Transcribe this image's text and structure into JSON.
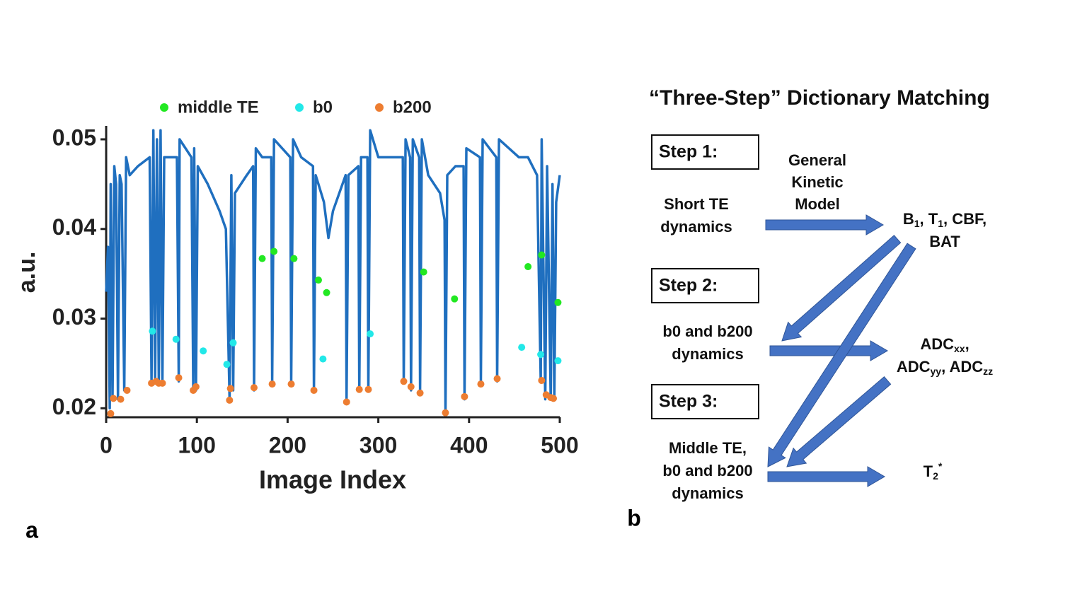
{
  "chart_data": {
    "type": "line",
    "xlabel": "Image Index",
    "ylabel": "a.u.",
    "xlim": [
      0,
      500
    ],
    "xticks": [
      0,
      100,
      200,
      300,
      400,
      500
    ],
    "ylim": [
      0.019,
      0.0515
    ],
    "yticks": [
      0.02,
      0.03,
      0.04,
      0.05
    ],
    "line": {
      "color": "#1f6fbf",
      "x": [
        0,
        2,
        4,
        5,
        7,
        9,
        11,
        13,
        15,
        17,
        20,
        22,
        26,
        35,
        48,
        50,
        52,
        54,
        56,
        58,
        60,
        62,
        64,
        78,
        80,
        81,
        94,
        96,
        97,
        99,
        101,
        112,
        125,
        132,
        136,
        138,
        140,
        142,
        155,
        162,
        163,
        165,
        172,
        182,
        183,
        185,
        203,
        204,
        206,
        215,
        228,
        229,
        231,
        240,
        245,
        250,
        264,
        265,
        267,
        278,
        279,
        281,
        288,
        289,
        291,
        300,
        320,
        327,
        328,
        330,
        335,
        336,
        338,
        345,
        346,
        348,
        355,
        368,
        373,
        374,
        376,
        385,
        394,
        395,
        397,
        412,
        413,
        415,
        430,
        431,
        433,
        455,
        465,
        475,
        479,
        480,
        484,
        486,
        490,
        492,
        494,
        496,
        500
      ],
      "values": [
        0.033,
        0.038,
        0.02,
        0.045,
        0.021,
        0.047,
        0.045,
        0.021,
        0.046,
        0.045,
        0.022,
        0.048,
        0.046,
        0.047,
        0.048,
        0.023,
        0.051,
        0.023,
        0.05,
        0.023,
        0.051,
        0.023,
        0.048,
        0.048,
        0.023,
        0.05,
        0.048,
        0.022,
        0.049,
        0.022,
        0.047,
        0.045,
        0.042,
        0.04,
        0.021,
        0.046,
        0.022,
        0.044,
        0.046,
        0.047,
        0.022,
        0.049,
        0.048,
        0.048,
        0.023,
        0.05,
        0.048,
        0.023,
        0.05,
        0.048,
        0.047,
        0.022,
        0.046,
        0.043,
        0.039,
        0.042,
        0.046,
        0.021,
        0.046,
        0.047,
        0.022,
        0.048,
        0.048,
        0.022,
        0.051,
        0.048,
        0.048,
        0.048,
        0.023,
        0.05,
        0.048,
        0.022,
        0.05,
        0.048,
        0.022,
        0.05,
        0.046,
        0.044,
        0.041,
        0.0195,
        0.046,
        0.047,
        0.047,
        0.021,
        0.049,
        0.048,
        0.023,
        0.05,
        0.048,
        0.023,
        0.05,
        0.048,
        0.048,
        0.046,
        0.023,
        0.05,
        0.021,
        0.047,
        0.021,
        0.045,
        0.021,
        0.043,
        0.046
      ]
    },
    "series": [
      {
        "name": "middle TE",
        "color": "#22e822",
        "x": [
          172,
          185,
          207,
          234,
          243,
          350,
          384,
          465,
          480,
          498
        ],
        "values": [
          0.0367,
          0.0375,
          0.0367,
          0.0343,
          0.0329,
          0.0352,
          0.0322,
          0.0358,
          0.0371,
          0.0318
        ]
      },
      {
        "name": "b0",
        "color": "#22e8e8",
        "x": [
          51,
          77,
          107,
          133,
          140,
          239,
          291,
          458,
          479,
          498
        ],
        "values": [
          0.0286,
          0.0277,
          0.0264,
          0.0249,
          0.0273,
          0.0255,
          0.0283,
          0.0268,
          0.026,
          0.0253
        ]
      },
      {
        "name": "b200",
        "color": "#ed7d31",
        "x": [
          5,
          8,
          16,
          23,
          50,
          55,
          58,
          62,
          80,
          96,
          99,
          136,
          137,
          163,
          183,
          204,
          229,
          265,
          279,
          289,
          328,
          336,
          346,
          374,
          395,
          413,
          431,
          480,
          485,
          490,
          493
        ],
        "values": [
          0.0194,
          0.0211,
          0.021,
          0.022,
          0.0228,
          0.023,
          0.0228,
          0.0228,
          0.0234,
          0.022,
          0.0224,
          0.0209,
          0.0222,
          0.0223,
          0.0227,
          0.0227,
          0.022,
          0.0207,
          0.0221,
          0.0221,
          0.023,
          0.0224,
          0.0217,
          0.0195,
          0.0213,
          0.0227,
          0.0233,
          0.0231,
          0.0215,
          0.0212,
          0.0211
        ]
      }
    ]
  },
  "panel_labels": [
    "a",
    "b"
  ],
  "diagram": {
    "title": "“Three-Step” Dictionary Matching",
    "steps": [
      "Step 1:",
      "Step 2:",
      "Step 3:"
    ],
    "model": [
      "General",
      "Kinetic",
      "Model"
    ],
    "inputs": [
      [
        "Short TE",
        "dynamics"
      ],
      [
        "b0 and b200",
        "dynamics"
      ],
      [
        "Middle TE,",
        "b0 and b200",
        "dynamics"
      ]
    ],
    "outputs": [
      [
        [
          {
            "text": "B"
          },
          {
            "sub": "1"
          },
          {
            "text": ", T"
          },
          {
            "sub": "1"
          },
          {
            "text": ", CBF,"
          }
        ],
        [
          {
            "text": "BAT"
          }
        ]
      ],
      [
        [
          {
            "text": "ADC"
          },
          {
            "sub": "xx"
          },
          {
            "text": ","
          }
        ],
        [
          {
            "text": "ADC"
          },
          {
            "sub": "yy"
          },
          {
            "text": ", ADC"
          },
          {
            "sub": "zz"
          }
        ]
      ],
      [
        [
          {
            "text": "T"
          },
          {
            "sub": "2"
          },
          {
            "sup": "*"
          }
        ]
      ]
    ]
  }
}
